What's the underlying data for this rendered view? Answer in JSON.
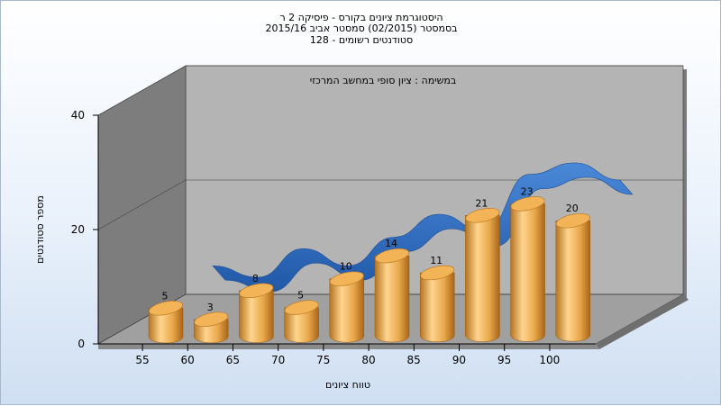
{
  "chart_data": {
    "type": "bar",
    "title": [
      "היסטוגרמת ציונים בקורס - פיסיקה 2 ר",
      "בסמסטר  (02/2015)  סמסטר אביב 2015/16",
      "סטודנטים רשומים - 128"
    ],
    "subtitle": "במשימה : ציון סופי במחשב המרכזי",
    "xlabel": "טווח ציונים",
    "ylabel": "מספר סטודנטים",
    "ylim": [
      0,
      40
    ],
    "yticks": [
      0,
      20,
      40
    ],
    "categories": [
      "55",
      "60",
      "65",
      "70",
      "75",
      "80",
      "85",
      "90",
      "95",
      "100"
    ],
    "values": [
      5,
      3,
      8,
      5,
      10,
      14,
      11,
      21,
      23,
      20
    ],
    "grid": true,
    "colors": {
      "bar": "#e8a84a",
      "ribbon": "#2f6fc0",
      "wall": "#b4b4b4",
      "side": "#7d7d7d",
      "floor": "#a0a0a0"
    }
  }
}
